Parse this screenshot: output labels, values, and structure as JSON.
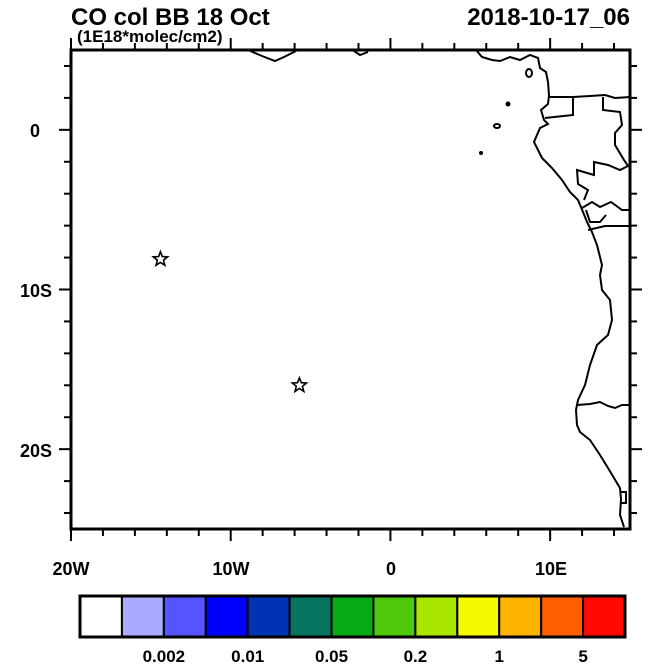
{
  "title": {
    "left": "CO col BB 18 Oct",
    "units": "(1E18*molec/cm2)",
    "right": "2018-10-17_06"
  },
  "map": {
    "lon_range": [
      -20,
      15
    ],
    "lat_range": [
      -25,
      5
    ],
    "x_tick_labels": [
      "20W",
      "10W",
      "0",
      "10E"
    ],
    "y_tick_labels": [
      "0",
      "10S",
      "20S"
    ],
    "markers": [
      {
        "icon": "star-icon",
        "lon": -14.4,
        "lat": -8.1
      },
      {
        "icon": "star-icon",
        "lon": -5.7,
        "lat": -16.0
      }
    ]
  },
  "colorbar": {
    "colors": [
      "#ffffff",
      "#aaaaff",
      "#5555ff",
      "#0000ff",
      "#0033b3",
      "#06745f",
      "#07aa14",
      "#4dc80a",
      "#a8e600",
      "#f5fa00",
      "#ffb400",
      "#ff5f00",
      "#ff0a00"
    ],
    "labels": [
      "0.002",
      "0.01",
      "0.05",
      "0.2",
      "1",
      "5"
    ]
  }
}
